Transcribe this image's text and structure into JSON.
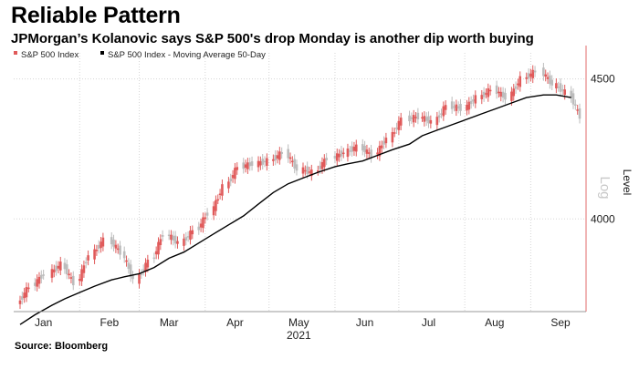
{
  "header": {
    "title": "Reliable Pattern",
    "subtitle": "JPMorgan’s Kolanovic says S&P 500's drop Monday is another dip worth buying"
  },
  "footer": {
    "source": "Source: Bloomberg"
  },
  "colors": {
    "up": "#e05a5a",
    "down": "#bcbcbc",
    "ma": "#000000",
    "grid": "#d6d6d6",
    "axis": "#e06b6b"
  },
  "chart_data": {
    "type": "candlestick",
    "year_label": "2021",
    "ylabel": "Level",
    "log_label": "Log",
    "log_scale": true,
    "ylim": [
      3700,
      4600
    ],
    "yticks": [
      4000,
      4500
    ],
    "grid": true,
    "legend_position": "top-left",
    "month_ticks": [
      "Jan",
      "Feb",
      "Mar",
      "Apr",
      "May",
      "Jun",
      "Jul",
      "Aug",
      "Sep"
    ],
    "series": [
      {
        "name": "S&P 500 Index",
        "type": "ohlc"
      },
      {
        "name": "S&P 500 Index - Moving Average 50-Day",
        "type": "line"
      }
    ],
    "x": [
      "2021-01-04",
      "2021-01-11",
      "2021-01-19",
      "2021-01-25",
      "2021-02-01",
      "2021-02-08",
      "2021-02-16",
      "2021-02-22",
      "2021-03-01",
      "2021-03-08",
      "2021-03-15",
      "2021-03-22",
      "2021-03-29",
      "2021-04-05",
      "2021-04-12",
      "2021-04-19",
      "2021-04-26",
      "2021-05-03",
      "2021-05-10",
      "2021-05-17",
      "2021-05-24",
      "2021-06-01",
      "2021-06-07",
      "2021-06-14",
      "2021-06-21",
      "2021-06-28",
      "2021-07-06",
      "2021-07-12",
      "2021-07-19",
      "2021-07-26",
      "2021-08-02",
      "2021-08-09",
      "2021-08-16",
      "2021-08-23",
      "2021-08-30",
      "2021-09-07",
      "2021-09-13",
      "2021-09-20"
    ],
    "close": [
      3780,
      3820,
      3850,
      3790,
      3880,
      3930,
      3890,
      3800,
      3860,
      3950,
      3920,
      3960,
      4020,
      4110,
      4180,
      4190,
      4200,
      4230,
      4170,
      4160,
      4210,
      4230,
      4250,
      4220,
      4280,
      4350,
      4360,
      4340,
      4400,
      4390,
      4430,
      4460,
      4430,
      4500,
      4530,
      4480,
      4450,
      4360
    ],
    "ma50": [
      3660,
      3690,
      3720,
      3740,
      3760,
      3780,
      3800,
      3810,
      3820,
      3840,
      3870,
      3890,
      3920,
      3950,
      3980,
      4010,
      4050,
      4090,
      4120,
      4140,
      4160,
      4180,
      4190,
      4200,
      4220,
      4240,
      4260,
      4290,
      4310,
      4330,
      4350,
      4370,
      4390,
      4410,
      4430,
      4440,
      4440,
      4430
    ]
  }
}
